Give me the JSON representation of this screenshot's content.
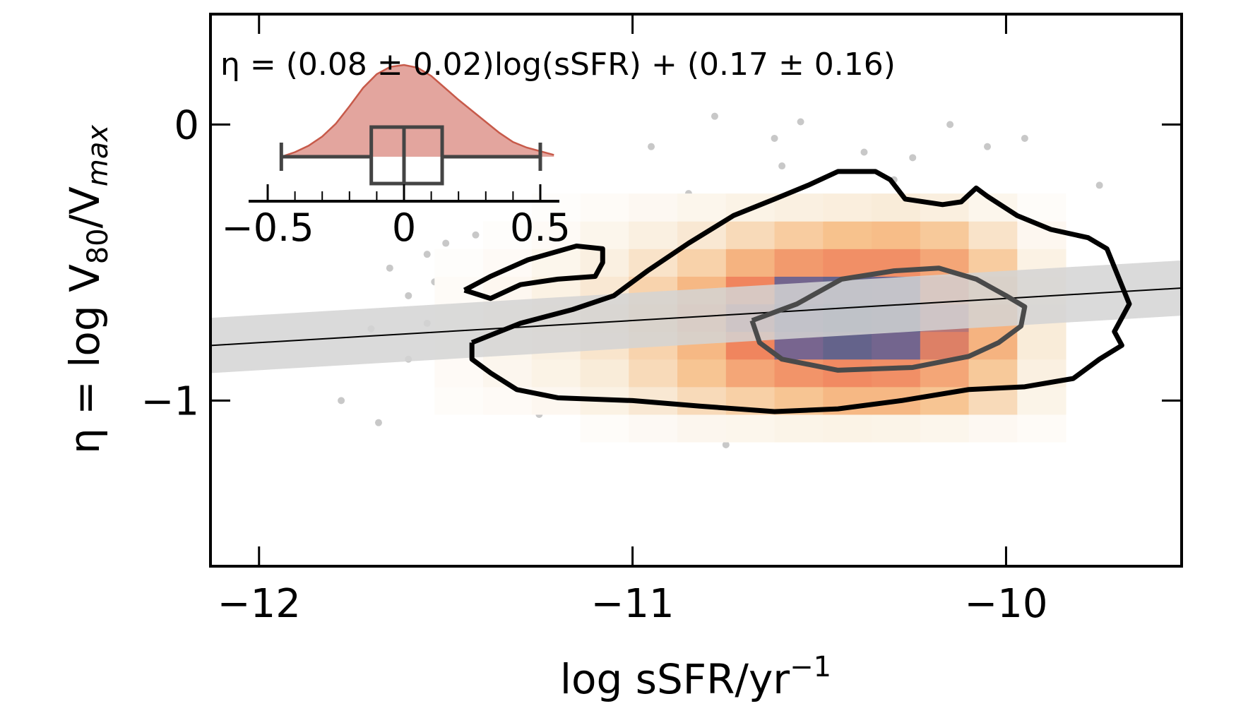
{
  "chart_data": {
    "type": "scatter",
    "title": "",
    "xlabel": "log sSFR/yr⁻¹",
    "ylabel": "η = log V₈₀/Vₘₐₓ",
    "xlabel_parts": {
      "main": "log sSFR/yr",
      "sup": "−1"
    },
    "ylabel_parts": {
      "pre": "η = log V",
      "sub1": "80",
      "mid": "/V",
      "sub2": "max"
    },
    "xlim": [
      -12.13,
      -9.53
    ],
    "ylim": [
      -1.6,
      0.4
    ],
    "x_ticks": [
      -12,
      -11,
      -10
    ],
    "x_tick_labels": [
      "−12",
      "−11",
      "−10"
    ],
    "y_ticks": [
      0,
      -1
    ],
    "y_tick_labels": [
      "0",
      "−1"
    ],
    "grid": false,
    "annotation": "η = (0.08 ± 0.02)log(sSFR) + (0.17 ± 0.16)",
    "fit": {
      "slope": 0.08,
      "slope_err": 0.02,
      "intercept": 0.17,
      "intercept_err": 0.16
    },
    "fit_band_halfwidth": 0.1,
    "colors": {
      "band": "#d4d4d4",
      "fit_line": "#000000",
      "scatter": "#c8c8c8",
      "outer_contour": "#000000",
      "inner_contour": "#4a4a4a",
      "hist_low": "#f9ecd9",
      "hist_mid": "#f7c08a",
      "hist_high": "#f0855e",
      "hist_core": "#4a5f86",
      "inset_fill": "#e3a59e",
      "inset_line": "#c75a4a",
      "inset_box": "#444444"
    },
    "scatter_points": [
      [
        -10.95,
        -0.08
      ],
      [
        -10.78,
        0.03
      ],
      [
        -10.62,
        -0.05
      ],
      [
        -10.55,
        0.01
      ],
      [
        -10.38,
        -0.1
      ],
      [
        -10.6,
        -0.15
      ],
      [
        -10.3,
        -0.2
      ],
      [
        -10.25,
        -0.12
      ],
      [
        -10.15,
        0.0
      ],
      [
        -10.1,
        -0.3
      ],
      [
        -9.95,
        -0.05
      ],
      [
        -9.75,
        -0.22
      ],
      [
        -10.05,
        -0.08
      ],
      [
        -11.2,
        -0.3
      ],
      [
        -11.05,
        -0.3
      ],
      [
        -11.5,
        -0.43
      ],
      [
        -11.55,
        -0.47
      ],
      [
        -11.4,
        -0.6
      ],
      [
        -11.6,
        -0.62
      ],
      [
        -11.55,
        -0.72
      ],
      [
        -11.45,
        -0.68
      ],
      [
        -11.35,
        -0.55
      ],
      [
        -11.7,
        -0.74
      ],
      [
        -11.65,
        -0.52
      ],
      [
        -11.48,
        -0.8
      ],
      [
        -11.28,
        -0.78
      ],
      [
        -11.15,
        -0.95
      ],
      [
        -11.6,
        -0.85
      ],
      [
        -11.78,
        -1.0
      ],
      [
        -11.68,
        -1.08
      ],
      [
        -11.25,
        -1.05
      ],
      [
        -11.05,
        -1.03
      ],
      [
        -10.85,
        -1.1
      ],
      [
        -10.75,
        -1.16
      ],
      [
        -11.3,
        -0.38
      ],
      [
        -10.55,
        -0.32
      ],
      [
        -10.85,
        -0.25
      ],
      [
        -10.2,
        -1.1
      ],
      [
        -10.0,
        -1.12
      ],
      [
        -11.42,
        -0.4
      ],
      [
        -11.53,
        -0.57
      ],
      [
        -11.1,
        -0.85
      ],
      [
        -10.9,
        -0.95
      ]
    ],
    "hist2d": {
      "x_edges": [
        -11.53,
        -11.4,
        -11.27,
        -11.14,
        -11.01,
        -10.88,
        -10.75,
        -10.62,
        -10.49,
        -10.36,
        -10.23,
        -10.1,
        -9.97,
        -9.84
      ],
      "y_edges": [
        -1.15,
        -1.05,
        -0.95,
        -0.85,
        -0.75,
        -0.65,
        -0.55,
        -0.45,
        -0.35,
        -0.25
      ],
      "counts": [
        [
          0.0,
          0.0,
          0.0,
          0.03,
          0.06,
          0.09,
          0.1,
          0.12,
          0.13,
          0.12,
          0.1,
          0.07,
          0.04
        ],
        [
          0.03,
          0.05,
          0.08,
          0.14,
          0.22,
          0.3,
          0.36,
          0.42,
          0.48,
          0.48,
          0.42,
          0.3,
          0.12
        ],
        [
          0.05,
          0.09,
          0.13,
          0.2,
          0.3,
          0.42,
          0.55,
          0.62,
          0.66,
          0.64,
          0.55,
          0.4,
          0.16
        ],
        [
          0.05,
          0.1,
          0.16,
          0.24,
          0.34,
          0.48,
          0.68,
          0.82,
          0.9,
          0.84,
          0.7,
          0.5,
          0.2
        ],
        [
          0.05,
          0.1,
          0.17,
          0.26,
          0.38,
          0.55,
          0.75,
          0.93,
          1.0,
          0.94,
          0.74,
          0.5,
          0.2
        ],
        [
          0.04,
          0.08,
          0.14,
          0.22,
          0.34,
          0.48,
          0.68,
          0.84,
          0.9,
          0.86,
          0.68,
          0.45,
          0.18
        ],
        [
          0.02,
          0.05,
          0.1,
          0.16,
          0.25,
          0.35,
          0.5,
          0.6,
          0.64,
          0.64,
          0.55,
          0.38,
          0.14
        ],
        [
          0.0,
          0.02,
          0.05,
          0.1,
          0.16,
          0.22,
          0.3,
          0.38,
          0.44,
          0.46,
          0.4,
          0.25,
          0.08
        ],
        [
          0.0,
          0.0,
          0.02,
          0.04,
          0.07,
          0.1,
          0.13,
          0.16,
          0.18,
          0.2,
          0.17,
          0.1,
          0.03
        ]
      ]
    },
    "contours": {
      "outer": [
        [
          -11.43,
          -0.79
        ],
        [
          -11.3,
          -0.72
        ],
        [
          -11.16,
          -0.67
        ],
        [
          -11.05,
          -0.62
        ],
        [
          -10.96,
          -0.53
        ],
        [
          -10.85,
          -0.43
        ],
        [
          -10.73,
          -0.33
        ],
        [
          -10.62,
          -0.27
        ],
        [
          -10.53,
          -0.22
        ],
        [
          -10.45,
          -0.17
        ],
        [
          -10.35,
          -0.17
        ],
        [
          -10.31,
          -0.2
        ],
        [
          -10.27,
          -0.27
        ],
        [
          -10.17,
          -0.29
        ],
        [
          -10.12,
          -0.28
        ],
        [
          -10.08,
          -0.23
        ],
        [
          -10.05,
          -0.26
        ],
        [
          -9.97,
          -0.33
        ],
        [
          -9.88,
          -0.38
        ],
        [
          -9.78,
          -0.41
        ],
        [
          -9.73,
          -0.45
        ],
        [
          -9.7,
          -0.55
        ],
        [
          -9.67,
          -0.65
        ],
        [
          -9.71,
          -0.75
        ],
        [
          -9.69,
          -0.8
        ],
        [
          -9.75,
          -0.85
        ],
        [
          -9.82,
          -0.92
        ],
        [
          -9.95,
          -0.95
        ],
        [
          -10.1,
          -0.96
        ],
        [
          -10.28,
          -1.0
        ],
        [
          -10.45,
          -1.03
        ],
        [
          -10.62,
          -1.04
        ],
        [
          -10.82,
          -1.02
        ],
        [
          -11.0,
          -1.0
        ],
        [
          -11.2,
          -0.99
        ],
        [
          -11.31,
          -0.96
        ],
        [
          -11.38,
          -0.9
        ],
        [
          -11.43,
          -0.85
        ],
        [
          -11.43,
          -0.79
        ]
      ],
      "inner": [
        [
          -10.68,
          -0.71
        ],
        [
          -10.56,
          -0.65
        ],
        [
          -10.44,
          -0.56
        ],
        [
          -10.3,
          -0.53
        ],
        [
          -10.18,
          -0.52
        ],
        [
          -10.08,
          -0.56
        ],
        [
          -10.0,
          -0.62
        ],
        [
          -9.95,
          -0.66
        ],
        [
          -9.96,
          -0.73
        ],
        [
          -10.02,
          -0.79
        ],
        [
          -10.1,
          -0.84
        ],
        [
          -10.25,
          -0.88
        ],
        [
          -10.45,
          -0.89
        ],
        [
          -10.6,
          -0.85
        ],
        [
          -10.66,
          -0.79
        ],
        [
          -10.68,
          -0.71
        ]
      ],
      "island": [
        [
          -11.45,
          -0.6
        ],
        [
          -11.38,
          -0.55
        ],
        [
          -11.28,
          -0.49
        ],
        [
          -11.15,
          -0.44
        ],
        [
          -11.08,
          -0.45
        ],
        [
          -11.08,
          -0.5
        ],
        [
          -11.1,
          -0.55
        ],
        [
          -11.2,
          -0.56
        ],
        [
          -11.3,
          -0.58
        ],
        [
          -11.38,
          -0.63
        ],
        [
          -11.45,
          -0.6
        ]
      ]
    },
    "inset": {
      "type": "kde_boxplot",
      "xlim": [
        -0.57,
        0.57
      ],
      "x_ticks": [
        -0.5,
        0,
        0.5
      ],
      "x_tick_labels": [
        "−0.5",
        "0",
        "0.5"
      ],
      "x_minor_step": 0.1,
      "box": {
        "whisker_low": -0.45,
        "q1": -0.12,
        "median": 0.0,
        "q3": 0.14,
        "whisker_high": 0.5
      },
      "kde_x": [
        -0.45,
        -0.4,
        -0.35,
        -0.3,
        -0.25,
        -0.2,
        -0.15,
        -0.1,
        -0.05,
        0.0,
        0.05,
        0.1,
        0.15,
        0.2,
        0.25,
        0.3,
        0.35,
        0.4,
        0.45,
        0.5,
        0.55
      ],
      "kde_y": [
        0.0,
        0.05,
        0.12,
        0.22,
        0.36,
        0.55,
        0.75,
        0.9,
        0.98,
        1.0,
        0.97,
        0.88,
        0.75,
        0.62,
        0.5,
        0.38,
        0.26,
        0.16,
        0.1,
        0.06,
        0.02
      ]
    }
  }
}
